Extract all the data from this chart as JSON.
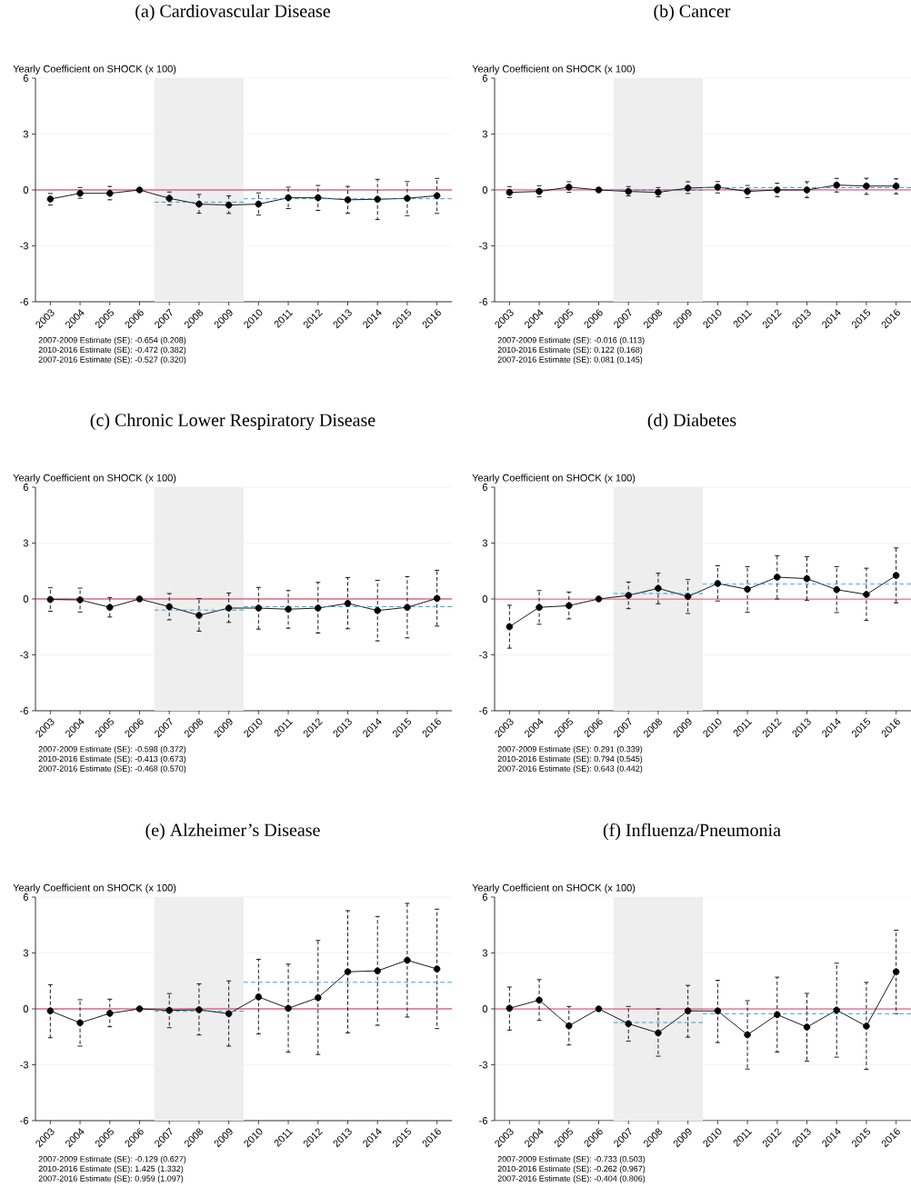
{
  "chart_data": [
    {
      "type": "line",
      "title": "(a) Cardiovascular Disease",
      "ylabel": "Yearly Coefficient on SHOCK (x 100)",
      "x": [
        2003,
        2004,
        2005,
        2006,
        2007,
        2008,
        2009,
        2010,
        2011,
        2012,
        2013,
        2014,
        2015,
        2016
      ],
      "xlim": [
        2002.5,
        2016.5
      ],
      "xticks": [
        2003,
        2004,
        2005,
        2006,
        2007,
        2008,
        2009,
        2010,
        2011,
        2012,
        2013,
        2014,
        2015,
        2016
      ],
      "ylim": [
        -6,
        6
      ],
      "yticks": [
        -6,
        -3,
        0,
        3,
        6
      ],
      "grid": "y",
      "marker": "circle",
      "series": [
        {
          "color": "#000000",
          "values": [
            -0.49,
            -0.18,
            -0.18,
            0,
            -0.45,
            -0.76,
            -0.81,
            -0.76,
            -0.42,
            -0.42,
            -0.53,
            -0.5,
            -0.45,
            -0.31
          ],
          "errors": [
            [
              -0.81,
              -0.19
            ],
            [
              -0.45,
              0.13
            ],
            [
              -0.53,
              0.19
            ],
            null,
            [
              -0.81,
              -0.11
            ],
            [
              -1.25,
              -0.24
            ],
            [
              -1.26,
              -0.32
            ],
            [
              -1.35,
              -0.16
            ],
            [
              -1.0,
              0.15
            ],
            [
              -1.1,
              0.24
            ],
            [
              -1.25,
              0.19
            ],
            [
              -1.59,
              0.57
            ],
            [
              -1.38,
              0.45
            ],
            [
              -1.26,
              0.62
            ]
          ]
        },
        {
          "type": "line",
          "marker": "none",
          "line_style": "dashed",
          "color": "#1e9ad0",
          "x": [
            2006.5,
            2009.5
          ],
          "values": [
            -0.654,
            -0.654
          ]
        },
        {
          "type": "line",
          "marker": "none",
          "line_style": "dashed",
          "color": "#1e9ad0",
          "x": [
            2009.5,
            2016.5
          ],
          "values": [
            -0.472,
            -0.472
          ]
        }
      ],
      "ref_lines": [
        {
          "axis": "y",
          "value": 0,
          "color": "#d2204f"
        }
      ],
      "bands": [
        {
          "axis": "x",
          "from": 2006.5,
          "to": 2009.5,
          "color": "#eeeeee"
        }
      ],
      "annotations": [
        "2007-2009 Estimate (SE): -0.654 (0.208)",
        "2010-2016 Estimate (SE): -0.472 (0.382)",
        "2007-2016 Estimate (SE): -0.527 (0.320)"
      ]
    },
    {
      "type": "line",
      "title": "(b) Cancer",
      "ylabel": "Yearly Coefficient on SHOCK (x 100)",
      "x": [
        2003,
        2004,
        2005,
        2006,
        2007,
        2008,
        2009,
        2010,
        2011,
        2012,
        2013,
        2014,
        2015,
        2016
      ],
      "xlim": [
        2002.5,
        2016.5
      ],
      "xticks": [
        2003,
        2004,
        2005,
        2006,
        2007,
        2008,
        2009,
        2010,
        2011,
        2012,
        2013,
        2014,
        2015,
        2016
      ],
      "ylim": [
        -6,
        6
      ],
      "yticks": [
        -6,
        -3,
        0,
        3,
        6
      ],
      "grid": "y",
      "marker": "circle",
      "series": [
        {
          "color": "#000000",
          "values": [
            -0.13,
            -0.08,
            0.15,
            0,
            -0.08,
            -0.13,
            0.1,
            0.15,
            -0.08,
            0,
            0,
            0.26,
            0.21,
            0.21
          ],
          "errors": [
            [
              -0.41,
              0.18
            ],
            [
              -0.37,
              0.23
            ],
            [
              -0.13,
              0.44
            ],
            null,
            [
              -0.32,
              0.18
            ],
            [
              -0.37,
              0.13
            ],
            [
              -0.19,
              0.44
            ],
            [
              -0.16,
              0.45
            ],
            [
              -0.41,
              0.24
            ],
            [
              -0.36,
              0.36
            ],
            [
              -0.41,
              0.44
            ],
            [
              -0.11,
              0.62
            ],
            [
              -0.24,
              0.63
            ],
            [
              -0.21,
              0.6
            ]
          ]
        },
        {
          "type": "line",
          "marker": "none",
          "line_style": "dashed",
          "color": "#1e9ad0",
          "x": [
            2006.5,
            2009.5
          ],
          "values": [
            -0.016,
            -0.016
          ]
        },
        {
          "type": "line",
          "marker": "none",
          "line_style": "dashed",
          "color": "#1e9ad0",
          "x": [
            2009.5,
            2016.5
          ],
          "values": [
            0.122,
            0.122
          ]
        }
      ],
      "ref_lines": [
        {
          "axis": "y",
          "value": 0,
          "color": "#d2204f"
        }
      ],
      "bands": [
        {
          "axis": "x",
          "from": 2006.5,
          "to": 2009.5,
          "color": "#eeeeee"
        }
      ],
      "annotations": [
        "2007-2009 Estimate (SE): -0.016 (0.113)",
        "2010-2016 Estimate (SE): 0.122 (0.168)",
        "2007-2016 Estimate (SE): 0.081 (0.145)"
      ]
    },
    {
      "type": "line",
      "title": "(c) Chronic Lower Respiratory Disease",
      "ylabel": "Yearly Coefficient on SHOCK (x 100)",
      "x": [
        2003,
        2004,
        2005,
        2006,
        2007,
        2008,
        2009,
        2010,
        2011,
        2012,
        2013,
        2014,
        2015,
        2016
      ],
      "xlim": [
        2002.5,
        2016.5
      ],
      "xticks": [
        2003,
        2004,
        2005,
        2006,
        2007,
        2008,
        2009,
        2010,
        2011,
        2012,
        2013,
        2014,
        2015,
        2016
      ],
      "ylim": [
        -6,
        6
      ],
      "yticks": [
        -6,
        -3,
        0,
        3,
        6
      ],
      "grid": "y",
      "marker": "circle",
      "series": [
        {
          "color": "#000000",
          "values": [
            -0.03,
            -0.05,
            -0.45,
            0,
            -0.42,
            -0.88,
            -0.49,
            -0.49,
            -0.55,
            -0.49,
            -0.24,
            -0.62,
            -0.45,
            0.03
          ],
          "errors": [
            [
              -0.66,
              0.6
            ],
            [
              -0.7,
              0.58
            ],
            [
              -0.97,
              0.08
            ],
            null,
            [
              -1.12,
              0.29
            ],
            [
              -1.73,
              0.02
            ],
            [
              -1.26,
              0.32
            ],
            [
              -1.62,
              0.62
            ],
            [
              -1.57,
              0.45
            ],
            [
              -1.83,
              0.89
            ],
            [
              -1.6,
              1.15
            ],
            [
              -2.25,
              1.0
            ],
            [
              -2.09,
              1.2
            ],
            [
              -1.46,
              1.54
            ]
          ]
        },
        {
          "type": "line",
          "marker": "none",
          "line_style": "dashed",
          "color": "#1e9ad0",
          "x": [
            2006.5,
            2009.5
          ],
          "values": [
            -0.598,
            -0.598
          ]
        },
        {
          "type": "line",
          "marker": "none",
          "line_style": "dashed",
          "color": "#1e9ad0",
          "x": [
            2009.5,
            2016.5
          ],
          "values": [
            -0.413,
            -0.413
          ]
        }
      ],
      "ref_lines": [
        {
          "axis": "y",
          "value": 0,
          "color": "#d2204f"
        }
      ],
      "bands": [
        {
          "axis": "x",
          "from": 2006.5,
          "to": 2009.5,
          "color": "#eeeeee"
        }
      ],
      "annotations": [
        "2007-2009 Estimate (SE): -0.598 (0.372)",
        "2010-2016 Estimate (SE): -0.413 (0.673)",
        "2007-2016 Estimate (SE): -0.468 (0.570)"
      ]
    },
    {
      "type": "line",
      "title": "(d) Diabetes",
      "ylabel": "Yearly Coefficient on SHOCK (x 100)",
      "x": [
        2003,
        2004,
        2005,
        2006,
        2007,
        2008,
        2009,
        2010,
        2011,
        2012,
        2013,
        2014,
        2015,
        2016
      ],
      "xlim": [
        2002.5,
        2016.5
      ],
      "xticks": [
        2003,
        2004,
        2005,
        2006,
        2007,
        2008,
        2009,
        2010,
        2011,
        2012,
        2013,
        2014,
        2015,
        2016
      ],
      "ylim": [
        -6,
        6
      ],
      "yticks": [
        -6,
        -3,
        0,
        3,
        6
      ],
      "grid": "y",
      "marker": "circle",
      "series": [
        {
          "color": "#000000",
          "values": [
            -1.49,
            -0.45,
            -0.36,
            0,
            0.19,
            0.57,
            0.13,
            0.83,
            0.52,
            1.17,
            1.09,
            0.5,
            0.24,
            1.26
          ],
          "errors": [
            [
              -2.64,
              -0.34
            ],
            [
              -1.36,
              0.45
            ],
            [
              -1.07,
              0.37
            ],
            null,
            [
              -0.52,
              0.91
            ],
            [
              -0.26,
              1.38
            ],
            [
              -0.78,
              1.04
            ],
            [
              -0.11,
              1.78
            ],
            [
              -0.71,
              1.73
            ],
            [
              0,
              2.32
            ],
            [
              -0.08,
              2.27
            ],
            [
              -0.73,
              1.73
            ],
            [
              -1.15,
              1.65
            ],
            [
              -0.21,
              2.74
            ]
          ]
        },
        {
          "type": "line",
          "marker": "none",
          "line_style": "dashed",
          "color": "#1e9ad0",
          "x": [
            2006.5,
            2009.5
          ],
          "values": [
            0.291,
            0.291
          ]
        },
        {
          "type": "line",
          "marker": "none",
          "line_style": "dashed",
          "color": "#1e9ad0",
          "x": [
            2009.5,
            2016.5
          ],
          "values": [
            0.794,
            0.794
          ]
        }
      ],
      "ref_lines": [
        {
          "axis": "y",
          "value": 0,
          "color": "#d2204f"
        }
      ],
      "bands": [
        {
          "axis": "x",
          "from": 2006.5,
          "to": 2009.5,
          "color": "#eeeeee"
        }
      ],
      "annotations": [
        "2007-2009 Estimate (SE): 0.291 (0.339)",
        "2010-2016 Estimate (SE): 0.794 (0.545)",
        "2007-2016 Estimate (SE): 0.643 (0.442)"
      ]
    },
    {
      "type": "line",
      "title": "(e) Alzheimer’s Disease",
      "ylabel": "Yearly Coefficient on SHOCK (x 100)",
      "x": [
        2003,
        2004,
        2005,
        2006,
        2007,
        2008,
        2009,
        2010,
        2011,
        2012,
        2013,
        2014,
        2015,
        2016
      ],
      "xlim": [
        2002.5,
        2016.5
      ],
      "xticks": [
        2003,
        2004,
        2005,
        2006,
        2007,
        2008,
        2009,
        2010,
        2011,
        2012,
        2013,
        2014,
        2015,
        2016
      ],
      "ylim": [
        -6,
        6
      ],
      "yticks": [
        -6,
        -3,
        0,
        3,
        6
      ],
      "grid": "y",
      "marker": "circle",
      "series": [
        {
          "color": "#000000",
          "values": [
            -0.11,
            -0.75,
            -0.24,
            0,
            -0.08,
            -0.05,
            -0.26,
            0.64,
            0.03,
            0.6,
            1.99,
            2.04,
            2.61,
            2.14
          ],
          "errors": [
            [
              -1.55,
              1.3
            ],
            [
              -2.0,
              0.49
            ],
            [
              -0.96,
              0.52
            ],
            null,
            [
              -1.01,
              0.82
            ],
            [
              -1.4,
              1.34
            ],
            [
              -2.0,
              1.5
            ],
            [
              -1.35,
              2.66
            ],
            [
              -2.33,
              2.4
            ],
            [
              -2.45,
              3.67
            ],
            [
              -1.29,
              5.27
            ],
            [
              -0.88,
              4.96
            ],
            [
              -0.44,
              5.66
            ],
            [
              -1.06,
              5.35
            ]
          ]
        },
        {
          "type": "line",
          "marker": "none",
          "line_style": "dashed",
          "color": "#1e9ad0",
          "x": [
            2006.5,
            2009.5
          ],
          "values": [
            -0.129,
            -0.129
          ]
        },
        {
          "type": "line",
          "marker": "none",
          "line_style": "dashed",
          "color": "#1e9ad0",
          "x": [
            2009.5,
            2016.5
          ],
          "values": [
            1.425,
            1.425
          ]
        }
      ],
      "ref_lines": [
        {
          "axis": "y",
          "value": 0,
          "color": "#d2204f"
        }
      ],
      "bands": [
        {
          "axis": "x",
          "from": 2006.5,
          "to": 2009.5,
          "color": "#eeeeee"
        }
      ],
      "annotations": [
        "2007-2009 Estimate (SE): -0.129 (0.627)",
        "2010-2016 Estimate (SE): 1.425 (1.332)",
        "2007-2016 Estimate (SE): 0.959 (1.097)"
      ]
    },
    {
      "type": "line",
      "title": "(f) Influenza/Pneumonia",
      "ylabel": "Yearly Coefficient on SHOCK (x 100)",
      "x": [
        2003,
        2004,
        2005,
        2006,
        2007,
        2008,
        2009,
        2010,
        2011,
        2012,
        2013,
        2014,
        2015,
        2016
      ],
      "xlim": [
        2002.5,
        2016.5
      ],
      "xticks": [
        2003,
        2004,
        2005,
        2006,
        2007,
        2008,
        2009,
        2010,
        2011,
        2012,
        2013,
        2014,
        2015,
        2016
      ],
      "ylim": [
        -6,
        6
      ],
      "yticks": [
        -6,
        -3,
        0,
        3,
        6
      ],
      "grid": "y",
      "marker": "circle",
      "series": [
        {
          "color": "#000000",
          "values": [
            0.03,
            0.47,
            -0.91,
            0,
            -0.8,
            -1.29,
            -0.11,
            -0.11,
            -1.39,
            -0.31,
            -0.98,
            -0.07,
            -0.93,
            1.99
          ],
          "errors": [
            [
              -1.14,
              1.17
            ],
            [
              -0.62,
              1.57
            ],
            [
              -1.94,
              0.13
            ],
            null,
            [
              -1.73,
              0.13
            ],
            [
              -2.54,
              0
            ],
            [
              -1.52,
              1.26
            ],
            [
              -1.81,
              1.53
            ],
            [
              -3.23,
              0.44
            ],
            [
              -2.32,
              1.7
            ],
            [
              -2.81,
              0.83
            ],
            [
              -2.59,
              2.45
            ],
            [
              -3.25,
              1.42
            ],
            [
              -0.26,
              4.22
            ]
          ]
        },
        {
          "type": "line",
          "marker": "none",
          "line_style": "dashed",
          "color": "#1e9ad0",
          "x": [
            2006.5,
            2009.5
          ],
          "values": [
            -0.733,
            -0.733
          ]
        },
        {
          "type": "line",
          "marker": "none",
          "line_style": "dashed",
          "color": "#1e9ad0",
          "x": [
            2009.5,
            2016.5
          ],
          "values": [
            -0.262,
            -0.262
          ]
        }
      ],
      "ref_lines": [
        {
          "axis": "y",
          "value": 0,
          "color": "#d2204f"
        }
      ],
      "bands": [
        {
          "axis": "x",
          "from": 2006.5,
          "to": 2009.5,
          "color": "#eeeeee"
        }
      ],
      "annotations": [
        "2007-2009 Estimate (SE): -0.733 (0.503)",
        "2010-2016 Estimate (SE): -0.262 (0.967)",
        "2007-2016 Estimate (SE): -0.404 (0.806)"
      ]
    }
  ]
}
